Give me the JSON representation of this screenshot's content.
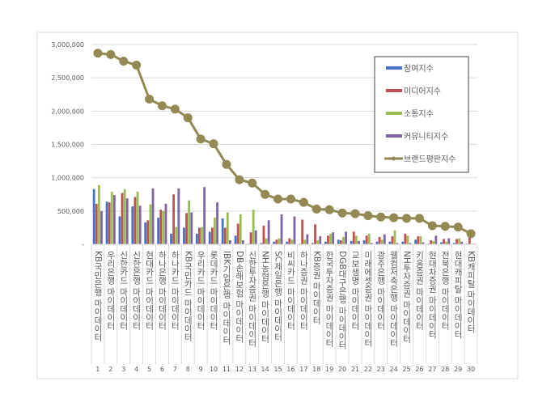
{
  "chart_data": {
    "type": "bar+line",
    "title": "",
    "xlabel": "",
    "ylabel": "",
    "ylim": [
      0,
      3000000
    ],
    "yticks": [
      "-",
      "500,000",
      "1,000,000",
      "1,500,000",
      "2,000,000",
      "2,500,000",
      "3,000,000"
    ],
    "grid": true,
    "legend_position": "top-right",
    "categories": [
      "KB국민은행 마이데이터",
      "우리은행 마이데이터",
      "신한카드 마이데이터",
      "신한은행 마이데이터",
      "현대카드 마이데이터",
      "하나은행 마이데이터",
      "하나카드 마이데이터",
      "KB국민카드 마이데이터",
      "우리카드 마이데이터",
      "롯데카드 마이데이터",
      "IBK기업은행 마이데이터",
      "DB손해보험 마이데이터",
      "신한투자증권 마이데이터",
      "NH농협은행 마이데이터",
      "SC제일은행 마이데이터",
      "비씨카드 마이데이터",
      "하나증권 마이데이터",
      "KB증권 마이데이터",
      "한국투자증권 마이데이터",
      "DGB대구은행 마이데이터",
      "교보생명 마이데이터",
      "미래에셋증권 마이데이터",
      "광주은행 마이데이터",
      "웰컴저축은행 마이데이터",
      "NH투자증권 마이데이터",
      "키움증권 마이데이터",
      "현대차증권 마이데이터",
      "전북은행 마이데이터",
      "현대캐피탈 마이데이터",
      "KB캐피탈 마이데이터"
    ],
    "ranks": [
      "1",
      "2",
      "3",
      "4",
      "5",
      "6",
      "7",
      "8",
      "9",
      "10",
      "11",
      "12",
      "13",
      "14",
      "15",
      "16",
      "17",
      "18",
      "19",
      "20",
      "21",
      "22",
      "23",
      "24",
      "25",
      "26",
      "27",
      "28",
      "29",
      "30"
    ],
    "series": [
      {
        "name": "참여지수",
        "kind": "bar",
        "color": "#4472c4",
        "values": [
          830000,
          640000,
          420000,
          570000,
          330000,
          400000,
          160000,
          250000,
          160000,
          190000,
          390000,
          130000,
          10000,
          20000,
          40000,
          40000,
          10000,
          20000,
          40000,
          70000,
          50000,
          60000,
          40000,
          40000,
          40000,
          70000,
          10000,
          30000,
          20000,
          10000
        ]
      },
      {
        "name": "미디어지수",
        "kind": "bar",
        "color": "#c0504d",
        "values": [
          610000,
          630000,
          770000,
          710000,
          360000,
          520000,
          750000,
          470000,
          250000,
          250000,
          250000,
          310000,
          180000,
          280000,
          70000,
          90000,
          370000,
          300000,
          130000,
          60000,
          190000,
          130000,
          110000,
          120000,
          160000,
          120000,
          60000,
          80000,
          80000,
          110000
        ]
      },
      {
        "name": "소통지수",
        "kind": "bar",
        "color": "#9bbb59",
        "values": [
          890000,
          790000,
          830000,
          790000,
          600000,
          500000,
          260000,
          660000,
          260000,
          400000,
          480000,
          450000,
          520000,
          90000,
          90000,
          70000,
          70000,
          60000,
          160000,
          110000,
          130000,
          160000,
          70000,
          210000,
          130000,
          120000,
          50000,
          40000,
          90000,
          10000
        ]
      },
      {
        "name": "커뮤니티지수",
        "kind": "bar",
        "color": "#8064a2",
        "values": [
          500000,
          740000,
          690000,
          580000,
          840000,
          610000,
          840000,
          480000,
          860000,
          630000,
          60000,
          60000,
          210000,
          360000,
          450000,
          420000,
          150000,
          120000,
          180000,
          190000,
          50000,
          20000,
          150000,
          20000,
          20000,
          30000,
          130000,
          90000,
          40000,
          10000
        ]
      },
      {
        "name": "브랜드평판지수",
        "kind": "line",
        "color": "#938953",
        "values": [
          2870000,
          2850000,
          2750000,
          2690000,
          2180000,
          2080000,
          2030000,
          1900000,
          1580000,
          1510000,
          1200000,
          970000,
          920000,
          750000,
          680000,
          680000,
          630000,
          530000,
          520000,
          470000,
          460000,
          430000,
          410000,
          400000,
          390000,
          390000,
          280000,
          270000,
          260000,
          160000
        ]
      }
    ]
  }
}
